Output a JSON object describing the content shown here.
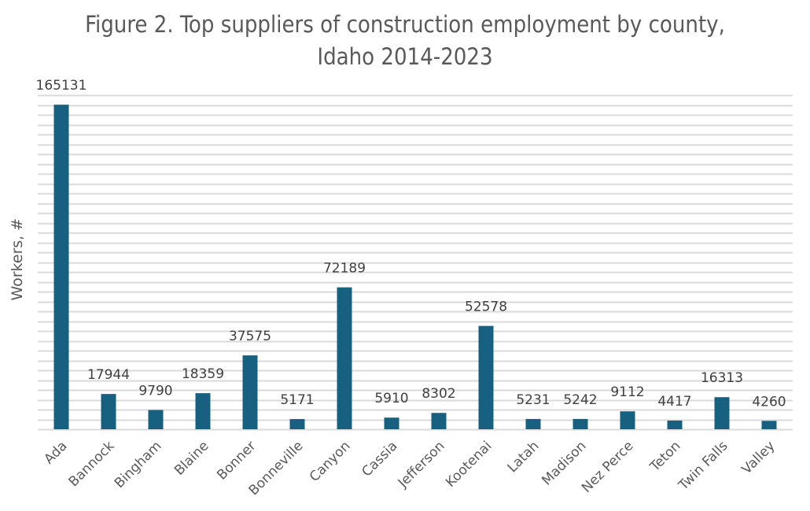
{
  "chart_data": {
    "type": "bar",
    "title_line1": "Figure 2. Top suppliers of construction employment by county,",
    "title_line2": "Idaho 2014-2023",
    "title": "Figure 2. Top suppliers of construction employment by county, Idaho 2014-2023",
    "xlabel": "",
    "ylabel": "Workers, #",
    "ylim": [
      0,
      170000
    ],
    "grid_step": 5000,
    "grid": true,
    "legend": "none",
    "bar_color": "#17607F",
    "categories": [
      "Ada",
      "Bannock",
      "Bingham",
      "Blaine",
      "Bonner",
      "Bonneville",
      "Canyon",
      "Cassia",
      "Jefferson",
      "Kootenai",
      "Latah",
      "Madison",
      "Nez Perce",
      "Teton",
      "Twin Falls",
      "Valley"
    ],
    "values": [
      165131,
      17944,
      9790,
      18359,
      37575,
      5171,
      72189,
      5910,
      8302,
      52578,
      5231,
      5242,
      9112,
      4417,
      16313,
      4260
    ]
  }
}
